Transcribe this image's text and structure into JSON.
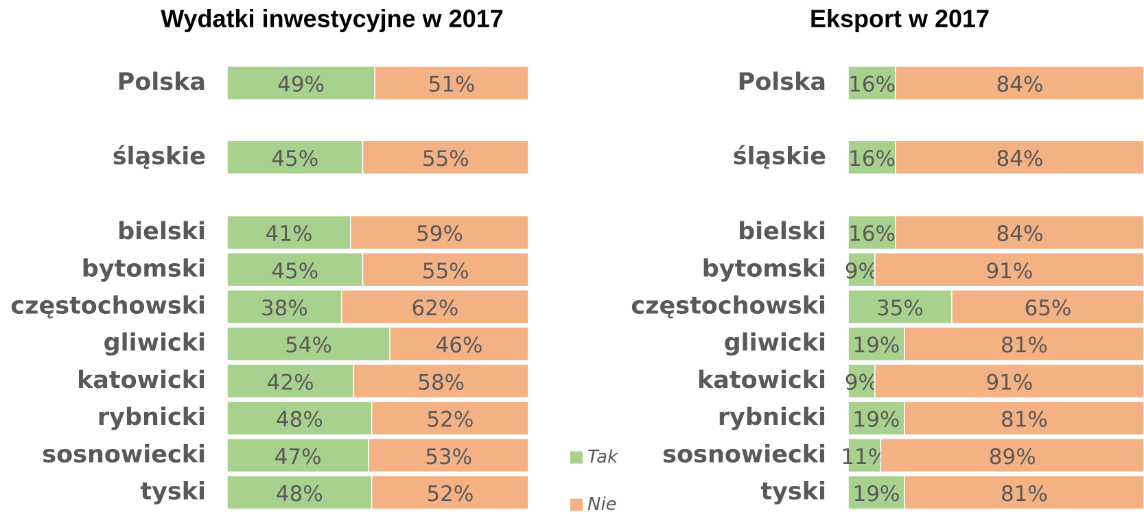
{
  "chart_data": [
    {
      "type": "bar",
      "orientation": "horizontal",
      "stacked": true,
      "title": "Wydatki inwestycyjne w 2017",
      "categories": [
        "Polska",
        "śląskie",
        "bielski",
        "bytomski",
        "częstochowski",
        "gliwicki",
        "katowicki",
        "rybnicki",
        "sosnowiecki",
        "tyski"
      ],
      "series": [
        {
          "name": "Tak",
          "color": "#a9d18e",
          "values": [
            49,
            45,
            41,
            45,
            38,
            54,
            42,
            48,
            47,
            48
          ],
          "value_labels": [
            "49%",
            "45%",
            "41%",
            "45%",
            "38%",
            "54%",
            "42%",
            "48%",
            "47%",
            "48%"
          ]
        },
        {
          "name": "Nie",
          "color": "#f4b183",
          "values": [
            51,
            55,
            59,
            55,
            62,
            46,
            58,
            52,
            53,
            52
          ],
          "value_labels": [
            "51%",
            "55%",
            "59%",
            "55%",
            "62%",
            "46%",
            "58%",
            "52%",
            "53%",
            "52%"
          ]
        }
      ],
      "xlim": [
        0,
        100
      ]
    },
    {
      "type": "bar",
      "orientation": "horizontal",
      "stacked": true,
      "title": "Eksport w 2017",
      "categories": [
        "Polska",
        "śląskie",
        "bielski",
        "bytomski",
        "częstochowski",
        "gliwicki",
        "katowicki",
        "rybnicki",
        "sosnowiecki",
        "tyski"
      ],
      "series": [
        {
          "name": "Tak",
          "color": "#a9d18e",
          "values": [
            16,
            16,
            16,
            9,
            35,
            19,
            9,
            19,
            11,
            19
          ],
          "value_labels": [
            "16%",
            "16%",
            "16%",
            "9%",
            "35%",
            "19%",
            "9%",
            "19%",
            "11%",
            "19%"
          ]
        },
        {
          "name": "Nie",
          "color": "#f4b183",
          "values": [
            84,
            84,
            84,
            91,
            65,
            81,
            91,
            81,
            89,
            81
          ],
          "value_labels": [
            "84%",
            "84%",
            "84%",
            "91%",
            "65%",
            "81%",
            "91%",
            "81%",
            "89%",
            "81%"
          ]
        }
      ],
      "xlim": [
        0,
        100
      ]
    }
  ]
}
